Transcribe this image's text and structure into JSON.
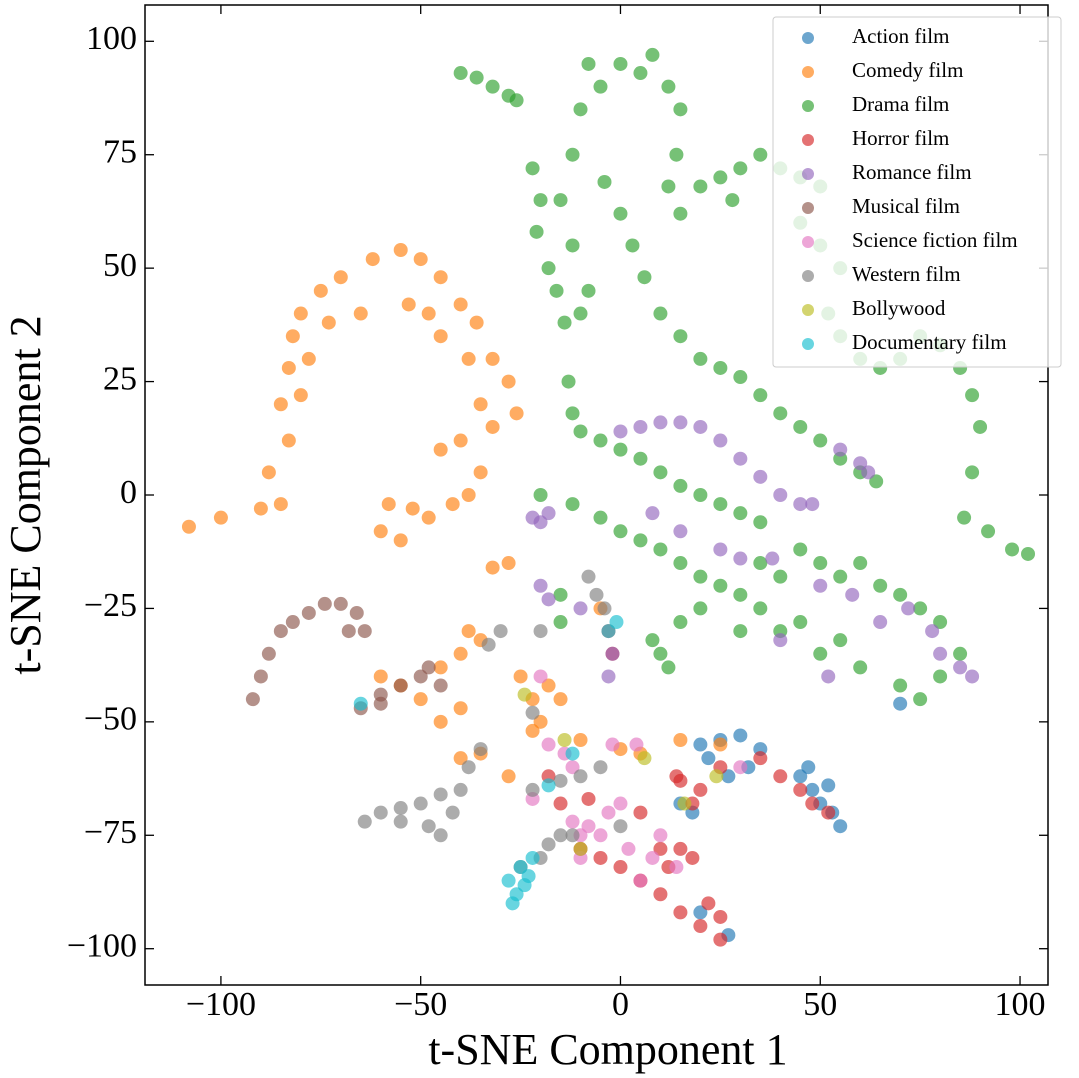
{
  "chart_data": {
    "type": "scatter",
    "xlabel": "t-SNE Component 1",
    "ylabel": "t-SNE Component 2",
    "xlim": [
      -119,
      107
    ],
    "ylim": [
      -108,
      108
    ],
    "xticks": [
      {
        "value": -100,
        "label": "−100"
      },
      {
        "value": -50,
        "label": "−50"
      },
      0,
      50,
      100
    ],
    "yticks": [
      {
        "value": -100,
        "label": "−100"
      },
      {
        "value": -75,
        "label": "−75"
      },
      {
        "value": -50,
        "label": "−50"
      },
      {
        "value": -25,
        "label": "−25"
      },
      0,
      25,
      50,
      75,
      100
    ],
    "legend": "upper right",
    "series": [
      {
        "name": "Action film",
        "color": "#1f77b4",
        "x": [
          20,
          25,
          30,
          35,
          32,
          22,
          27,
          45,
          48,
          50,
          53,
          55,
          47,
          52,
          27,
          15,
          18,
          70,
          20
        ],
        "y": [
          -55,
          -54,
          -53,
          -56,
          -60,
          -58,
          -62,
          -62,
          -65,
          -68,
          -70,
          -73,
          -60,
          -64,
          -97,
          -68,
          -70,
          -46,
          -92
        ]
      },
      {
        "name": "Comedy film",
        "color": "#ff7f0e",
        "x": [
          -108,
          -100,
          -90,
          -85,
          -88,
          -83,
          -85,
          -83,
          -82,
          -80,
          -75,
          -70,
          -62,
          -55,
          -50,
          -45,
          -40,
          -36,
          -32,
          -28,
          -26,
          -32,
          -35,
          -38,
          -42,
          -48,
          -52,
          -58,
          -60,
          -55,
          -45,
          -40,
          -35,
          -38,
          -45,
          -48,
          -53,
          -65,
          -73,
          -78,
          -80,
          -28,
          -32,
          -60,
          -55,
          -50,
          -45,
          -40,
          -38,
          -35,
          -45,
          -40,
          -25,
          -22,
          -20,
          -18,
          -15,
          -22,
          -40,
          -35,
          -10,
          0,
          5,
          15,
          25,
          -5,
          -28
        ],
        "y": [
          -7,
          -5,
          -3,
          -2,
          5,
          12,
          20,
          28,
          35,
          40,
          45,
          48,
          52,
          54,
          52,
          48,
          42,
          38,
          30,
          25,
          18,
          15,
          5,
          0,
          -2,
          -5,
          -3,
          -2,
          -8,
          -10,
          10,
          12,
          20,
          30,
          35,
          40,
          42,
          40,
          38,
          30,
          22,
          -15,
          -16,
          -40,
          -42,
          -45,
          -38,
          -35,
          -30,
          -32,
          -50,
          -47,
          -40,
          -45,
          -50,
          -42,
          -45,
          -52,
          -58,
          -57,
          -54,
          -56,
          -57,
          -54,
          -55,
          -25,
          -62
        ]
      },
      {
        "name": "Drama film",
        "color": "#2ca02c",
        "x": [
          -40,
          -36,
          -32,
          -28,
          -26,
          -22,
          -20,
          -21,
          -18,
          -16,
          -14,
          -10,
          -8,
          -12,
          -15,
          -12,
          -10,
          -5,
          -8,
          0,
          5,
          8,
          12,
          15,
          14,
          12,
          15,
          20,
          25,
          28,
          30,
          35,
          40,
          45,
          50,
          45,
          50,
          55,
          52,
          55,
          60,
          65,
          70,
          75,
          80,
          85,
          88,
          90,
          88,
          86,
          92,
          98,
          102,
          -4,
          0,
          3,
          6,
          10,
          15,
          20,
          25,
          30,
          35,
          40,
          45,
          50,
          55,
          60,
          64,
          -13,
          -12,
          -10,
          -5,
          0,
          5,
          10,
          15,
          20,
          25,
          30,
          35,
          -20,
          -12,
          -5,
          0,
          5,
          10,
          15,
          20,
          25,
          30,
          35,
          40,
          45,
          50,
          55,
          60,
          65,
          70,
          75,
          80,
          85,
          80,
          75,
          70,
          60,
          55,
          50,
          45,
          40,
          35,
          30,
          20,
          15,
          12,
          10,
          8,
          -15,
          -15
        ],
        "y": [
          93,
          92,
          90,
          88,
          87,
          72,
          65,
          58,
          50,
          45,
          38,
          40,
          45,
          55,
          65,
          75,
          85,
          90,
          95,
          95,
          93,
          97,
          90,
          85,
          75,
          68,
          62,
          68,
          70,
          65,
          72,
          75,
          72,
          70,
          68,
          60,
          55,
          50,
          40,
          35,
          30,
          28,
          30,
          35,
          33,
          28,
          22,
          15,
          5,
          -5,
          -8,
          -12,
          -13,
          69,
          62,
          55,
          48,
          40,
          35,
          30,
          28,
          26,
          22,
          18,
          15,
          12,
          8,
          5,
          3,
          25,
          18,
          14,
          12,
          10,
          8,
          5,
          2,
          0,
          -2,
          -4,
          -6,
          0,
          -2,
          -5,
          -8,
          -10,
          -12,
          -15,
          -18,
          -20,
          -22,
          -15,
          -18,
          -12,
          -15,
          -18,
          -15,
          -20,
          -22,
          -25,
          -28,
          -35,
          -40,
          -45,
          -42,
          -38,
          -32,
          -35,
          -28,
          -30,
          -25,
          -30,
          -25,
          -28,
          -38,
          -35,
          -32,
          -22,
          -28
        ]
      },
      {
        "name": "Horror film",
        "color": "#d62728",
        "x": [
          25,
          20,
          15,
          10,
          5,
          0,
          -5,
          12,
          18,
          22,
          25,
          15,
          10,
          40,
          35,
          20,
          15,
          25,
          45,
          48,
          52,
          -3,
          -2,
          -18,
          -15,
          -8,
          5,
          14,
          18,
          -10
        ],
        "y": [
          -98,
          -95,
          -92,
          -88,
          -85,
          -82,
          -80,
          -82,
          -80,
          -90,
          -93,
          -78,
          -78,
          -62,
          -58,
          -65,
          -63,
          -60,
          -65,
          -68,
          -70,
          -30,
          -35,
          -62,
          -68,
          -67,
          -70,
          -62,
          -68,
          -78
        ]
      },
      {
        "name": "Romance film",
        "color": "#9467bd",
        "x": [
          -22,
          -18,
          -20,
          0,
          5,
          10,
          15,
          20,
          25,
          30,
          35,
          40,
          45,
          48,
          55,
          60,
          62,
          8,
          15,
          25,
          30,
          38,
          50,
          58,
          65,
          72,
          78,
          80,
          85,
          88,
          52,
          40,
          -3,
          -2,
          -20,
          -18,
          -10
        ],
        "y": [
          -5,
          -4,
          -6,
          14,
          15,
          16,
          16,
          15,
          12,
          8,
          4,
          0,
          -2,
          -2,
          10,
          7,
          5,
          -4,
          -8,
          -12,
          -14,
          -14,
          -20,
          -22,
          -28,
          -25,
          -30,
          -35,
          -38,
          -40,
          -40,
          -32,
          -40,
          -35,
          -20,
          -23,
          -25
        ]
      },
      {
        "name": "Musical film",
        "color": "#8c564b",
        "x": [
          -92,
          -90,
          -88,
          -85,
          -82,
          -78,
          -74,
          -70,
          -66,
          -64,
          -68,
          -65,
          -60,
          -55,
          -50,
          -45,
          -48,
          -60
        ],
        "y": [
          -45,
          -40,
          -35,
          -30,
          -28,
          -26,
          -24,
          -24,
          -26,
          -30,
          -30,
          -47,
          -44,
          -42,
          -40,
          -42,
          -38,
          -46
        ]
      },
      {
        "name": "Science fiction film",
        "color": "#e377c2",
        "x": [
          -12,
          -10,
          -8,
          -5,
          -3,
          -10,
          0,
          2,
          10,
          5,
          8,
          -18,
          -14,
          -12,
          -2,
          4,
          14,
          -20,
          30,
          -22
        ],
        "y": [
          -72,
          -75,
          -73,
          -75,
          -70,
          -80,
          -68,
          -78,
          -75,
          -85,
          -80,
          -55,
          -57,
          -60,
          -55,
          -55,
          -82,
          -40,
          -60,
          -67
        ]
      },
      {
        "name": "Western film",
        "color": "#7f7f7f",
        "x": [
          -64,
          -60,
          -55,
          -50,
          -45,
          -40,
          -42,
          -48,
          -55,
          -45,
          -38,
          -35,
          -33,
          -30,
          -8,
          -6,
          -4,
          -22,
          -15,
          -10,
          -5,
          -20,
          -18,
          -15,
          -12,
          0,
          -25,
          -22,
          -20
        ],
        "y": [
          -72,
          -70,
          -69,
          -68,
          -66,
          -65,
          -70,
          -73,
          -72,
          -75,
          -60,
          -56,
          -33,
          -30,
          -18,
          -22,
          -25,
          -65,
          -63,
          -62,
          -60,
          -80,
          -77,
          -75,
          -75,
          -73,
          -82,
          -48,
          -30
        ]
      },
      {
        "name": "Bollywood",
        "color": "#bcbd22",
        "x": [
          -10,
          -24,
          -14,
          6,
          16,
          24
        ],
        "y": [
          -78,
          -44,
          -54,
          -58,
          -68,
          -62
        ]
      },
      {
        "name": "Documentary film",
        "color": "#17becf",
        "x": [
          -28,
          -26,
          -24,
          -25,
          -22,
          -27,
          -23,
          -1,
          -3,
          -18,
          -65,
          -12
        ],
        "y": [
          -85,
          -88,
          -86,
          -82,
          -80,
          -90,
          -84,
          -28,
          -30,
          -64,
          -46,
          -57
        ]
      }
    ]
  }
}
